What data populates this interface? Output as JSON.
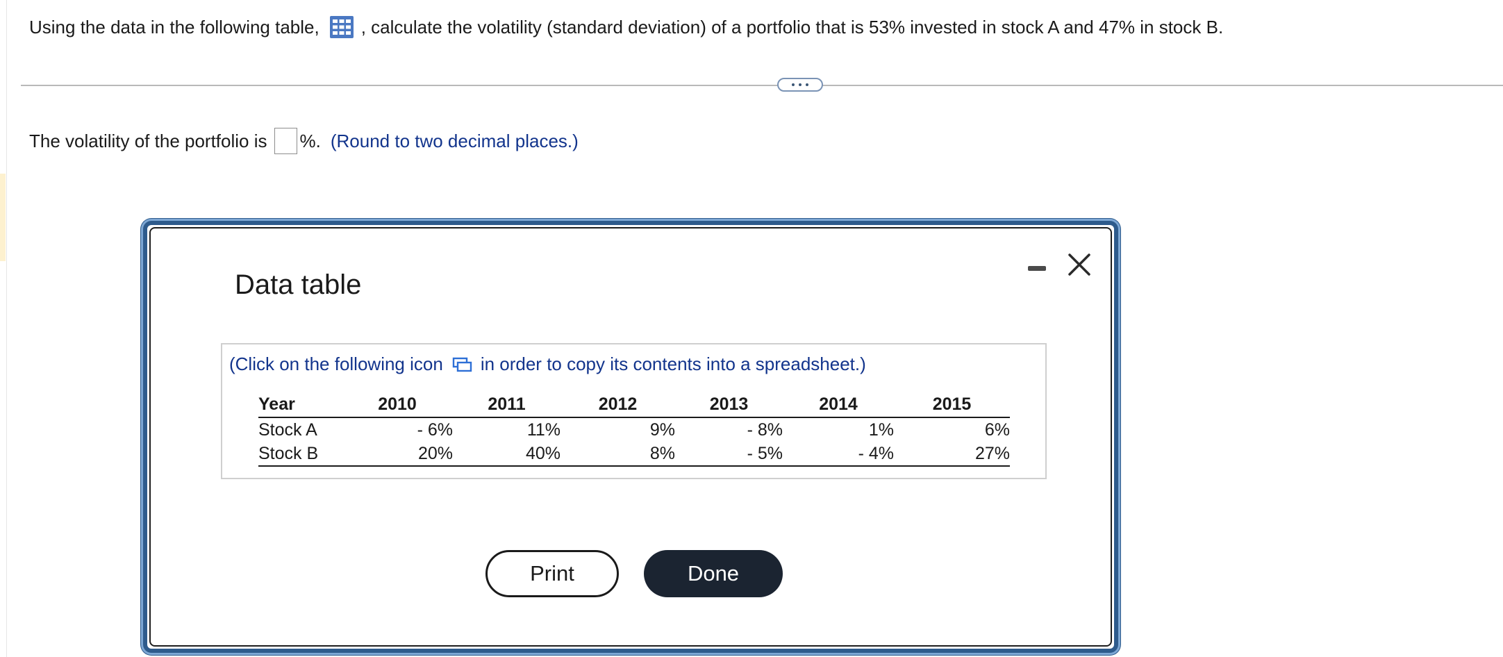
{
  "question": {
    "before_icon": "Using the data in the following table,",
    "icon": "table-grid-icon",
    "after_icon": ", calculate the volatility (standard deviation) of a portfolio that is 53% invested in stock A and 47% in stock B."
  },
  "expand_control": {
    "icon": "more-dots-icon"
  },
  "answer": {
    "prefix": "The volatility of the portfolio is",
    "input_value": "",
    "suffix": "%.",
    "hint": "(Round to two decimal places.)"
  },
  "dialog": {
    "title": "Data table",
    "minimize_icon": "minimize-icon",
    "close_icon": "close-icon",
    "copy_note_before": "(Click on the following icon",
    "copy_icon": "copy-to-spreadsheet-icon",
    "copy_note_after": "in order to copy its contents into a spreadsheet.)",
    "table": {
      "header": [
        "Year",
        "2010",
        "2011",
        "2012",
        "2013",
        "2014",
        "2015"
      ],
      "rows": [
        [
          "Stock A",
          "- 6%",
          "11%",
          "9%",
          "- 8%",
          "1%",
          "6%"
        ],
        [
          "Stock B",
          "20%",
          "40%",
          "8%",
          "- 5%",
          "- 4%",
          "27%"
        ]
      ]
    },
    "print_label": "Print",
    "done_label": "Done"
  },
  "colors": {
    "link_blue": "#12348c",
    "dialog_border": "#2e5b8c",
    "done_button": "#1b2431",
    "icon_blue": "#4a78c2"
  }
}
